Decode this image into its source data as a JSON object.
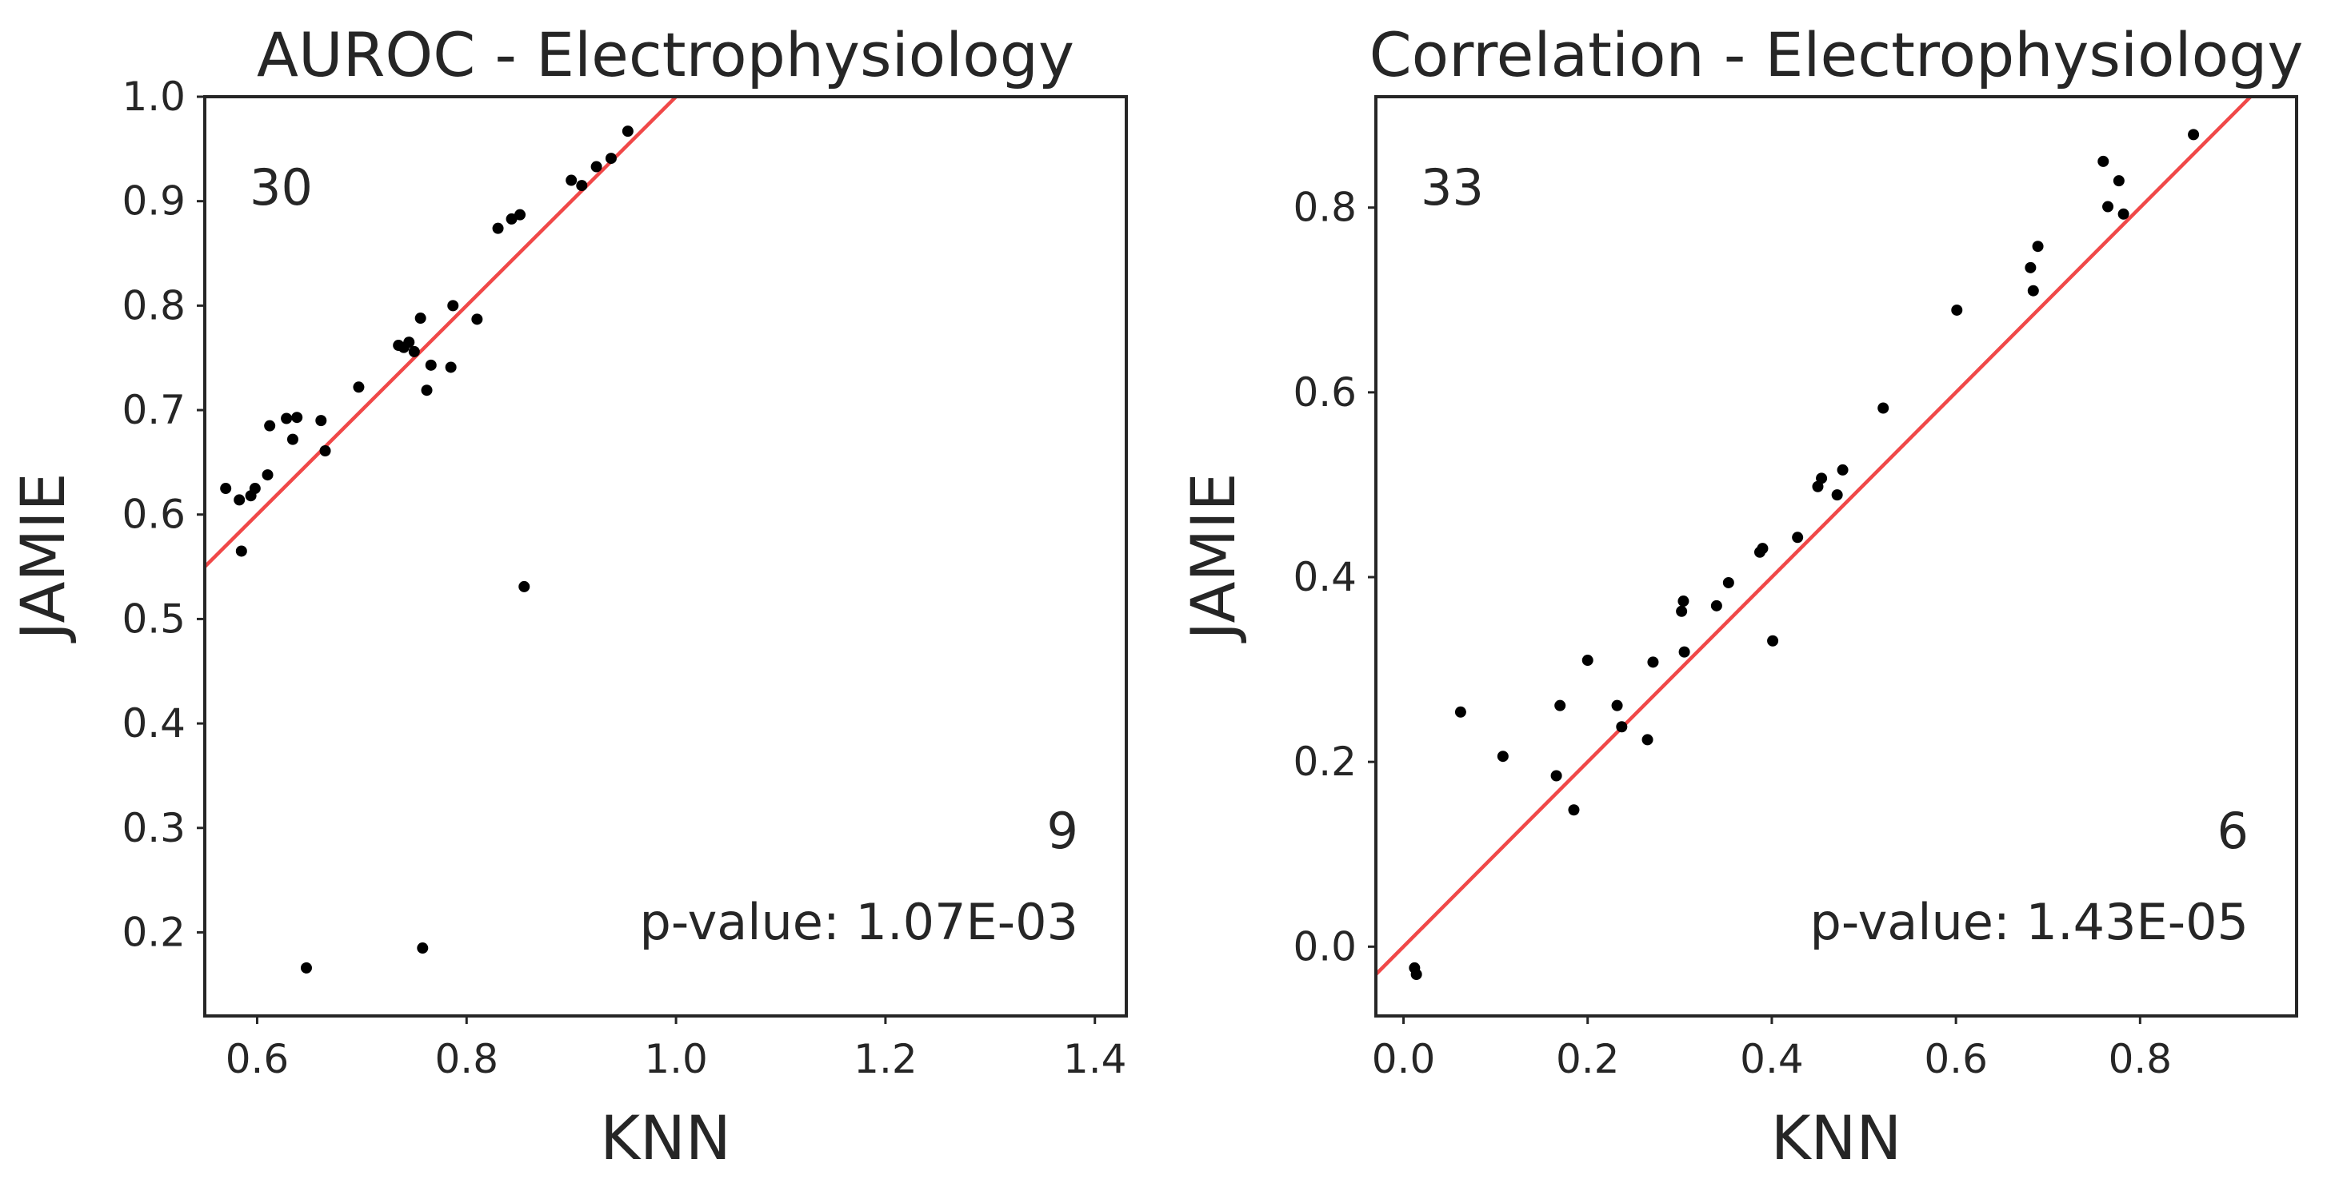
{
  "chart_data": [
    {
      "type": "scatter",
      "title": "AUROC - Electrophysiology",
      "xlabel": "KNN",
      "ylabel": "JAMIE",
      "xlim": [
        0.55,
        1.43
      ],
      "ylim": [
        0.12,
        1.0
      ],
      "xticks": [
        0.6,
        0.8,
        1.0,
        1.2,
        1.4
      ],
      "xtick_labels": [
        "0.6",
        "0.8",
        "1.0",
        "1.2",
        "1.4"
      ],
      "yticks": [
        0.2,
        0.3,
        0.4,
        0.5,
        0.6,
        0.7,
        0.8,
        0.9,
        1.0
      ],
      "ytick_labels": [
        "0.2",
        "0.3",
        "0.4",
        "0.5",
        "0.6",
        "0.7",
        "0.8",
        "0.9",
        "1.0"
      ],
      "grid": false,
      "fit_line": {
        "slope": 1.0,
        "intercept": 0.0,
        "color": "#f04848"
      },
      "annotations": {
        "count_above": "30",
        "count_below": "9",
        "p_value": "p-value: 1.07E-03"
      },
      "points": [
        {
          "x": 0.57,
          "y": 0.625
        },
        {
          "x": 0.583,
          "y": 0.614
        },
        {
          "x": 0.585,
          "y": 0.565
        },
        {
          "x": 0.594,
          "y": 0.618
        },
        {
          "x": 0.598,
          "y": 0.625
        },
        {
          "x": 0.61,
          "y": 0.638
        },
        {
          "x": 0.612,
          "y": 0.685
        },
        {
          "x": 0.628,
          "y": 0.692
        },
        {
          "x": 0.634,
          "y": 0.672
        },
        {
          "x": 0.638,
          "y": 0.693
        },
        {
          "x": 0.647,
          "y": 0.166
        },
        {
          "x": 0.661,
          "y": 0.69
        },
        {
          "x": 0.665,
          "y": 0.661
        },
        {
          "x": 0.697,
          "y": 0.722
        },
        {
          "x": 0.735,
          "y": 0.762
        },
        {
          "x": 0.74,
          "y": 0.76
        },
        {
          "x": 0.745,
          "y": 0.765
        },
        {
          "x": 0.75,
          "y": 0.756
        },
        {
          "x": 0.756,
          "y": 0.788
        },
        {
          "x": 0.758,
          "y": 0.185
        },
        {
          "x": 0.762,
          "y": 0.719
        },
        {
          "x": 0.766,
          "y": 0.743
        },
        {
          "x": 0.785,
          "y": 0.741
        },
        {
          "x": 0.787,
          "y": 0.8
        },
        {
          "x": 0.81,
          "y": 0.787
        },
        {
          "x": 0.83,
          "y": 0.874
        },
        {
          "x": 0.843,
          "y": 0.883
        },
        {
          "x": 0.851,
          "y": 0.887
        },
        {
          "x": 0.855,
          "y": 0.531
        },
        {
          "x": 0.9,
          "y": 0.92
        },
        {
          "x": 0.91,
          "y": 0.915
        },
        {
          "x": 0.924,
          "y": 0.933
        },
        {
          "x": 0.938,
          "y": 0.941
        },
        {
          "x": 0.954,
          "y": 0.967
        }
      ]
    },
    {
      "type": "scatter",
      "title": "Correlation - Electrophysiology",
      "xlabel": "KNN",
      "ylabel": "JAMIE",
      "xlim": [
        -0.03,
        0.97
      ],
      "ylim": [
        -0.075,
        0.92
      ],
      "xticks": [
        0.0,
        0.2,
        0.4,
        0.6,
        0.8
      ],
      "xtick_labels": [
        "0.0",
        "0.2",
        "0.4",
        "0.6",
        "0.8"
      ],
      "yticks": [
        0.0,
        0.2,
        0.4,
        0.6,
        0.8
      ],
      "ytick_labels": [
        "0.0",
        "0.2",
        "0.4",
        "0.6",
        "0.8"
      ],
      "grid": false,
      "fit_line": {
        "slope": 1.0,
        "intercept": 0.0,
        "color": "#f04848"
      },
      "annotations": {
        "count_above": "33",
        "count_below": "6",
        "p_value": "p-value: 1.43E-05"
      },
      "points": [
        {
          "x": 0.012,
          "y": -0.023
        },
        {
          "x": 0.014,
          "y": -0.03
        },
        {
          "x": 0.062,
          "y": 0.254
        },
        {
          "x": 0.108,
          "y": 0.206
        },
        {
          "x": 0.166,
          "y": 0.185
        },
        {
          "x": 0.17,
          "y": 0.261
        },
        {
          "x": 0.185,
          "y": 0.148
        },
        {
          "x": 0.2,
          "y": 0.31
        },
        {
          "x": 0.232,
          "y": 0.261
        },
        {
          "x": 0.237,
          "y": 0.238
        },
        {
          "x": 0.265,
          "y": 0.224
        },
        {
          "x": 0.271,
          "y": 0.308
        },
        {
          "x": 0.302,
          "y": 0.363
        },
        {
          "x": 0.304,
          "y": 0.374
        },
        {
          "x": 0.305,
          "y": 0.319
        },
        {
          "x": 0.34,
          "y": 0.369
        },
        {
          "x": 0.353,
          "y": 0.394
        },
        {
          "x": 0.387,
          "y": 0.427
        },
        {
          "x": 0.39,
          "y": 0.431
        },
        {
          "x": 0.401,
          "y": 0.331
        },
        {
          "x": 0.428,
          "y": 0.443
        },
        {
          "x": 0.45,
          "y": 0.498
        },
        {
          "x": 0.454,
          "y": 0.507
        },
        {
          "x": 0.471,
          "y": 0.489
        },
        {
          "x": 0.477,
          "y": 0.516
        },
        {
          "x": 0.521,
          "y": 0.583
        },
        {
          "x": 0.601,
          "y": 0.689
        },
        {
          "x": 0.681,
          "y": 0.735
        },
        {
          "x": 0.684,
          "y": 0.71
        },
        {
          "x": 0.689,
          "y": 0.758
        },
        {
          "x": 0.76,
          "y": 0.85
        },
        {
          "x": 0.765,
          "y": 0.801
        },
        {
          "x": 0.777,
          "y": 0.829
        },
        {
          "x": 0.782,
          "y": 0.793
        },
        {
          "x": 0.858,
          "y": 0.879
        }
      ]
    }
  ]
}
